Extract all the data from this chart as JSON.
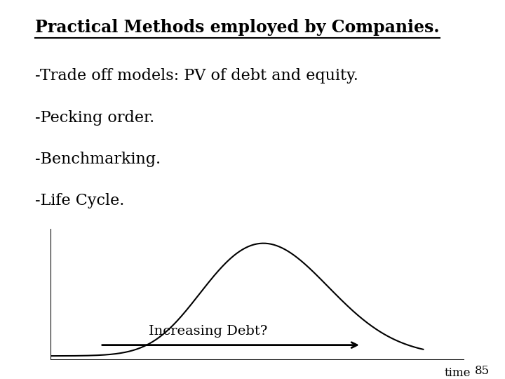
{
  "title": "Practical Methods employed by Companies.",
  "bullet1": "-Trade off models: PV of debt and equity.",
  "bullet2": "-Pecking order.",
  "bullet3": "-Benchmarking.",
  "bullet4": "-Life Cycle.",
  "x_label": "Increasing Debt?",
  "time_label": "time",
  "page_number": "85",
  "bg_color": "#ffffff",
  "text_color": "#000000",
  "title_fontsize": 17,
  "bullet_fontsize": 16,
  "annotation_fontsize": 14
}
